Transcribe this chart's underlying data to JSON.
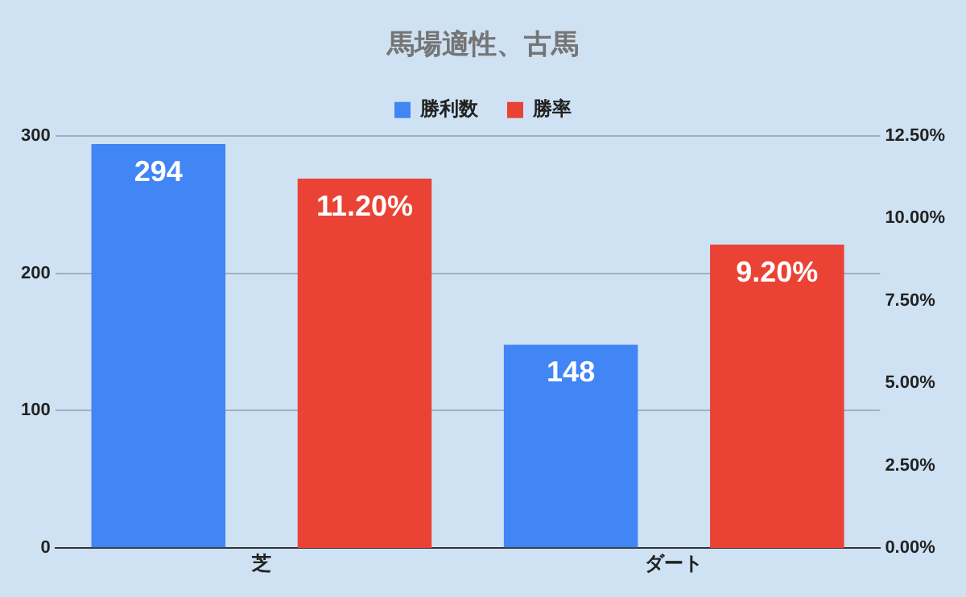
{
  "chart_data": {
    "type": "bar",
    "title": "馬場適性、古馬",
    "categories": [
      "芝",
      "ダート"
    ],
    "series": [
      {
        "name": "勝利数",
        "color": "#4285f4",
        "values": [
          294,
          148
        ],
        "value_labels": [
          "294",
          "148"
        ]
      },
      {
        "name": "勝率",
        "color": "#ea4335",
        "values": [
          11.2,
          9.2
        ],
        "axis": "y2",
        "value_labels": [
          "11.20%",
          "9.20%"
        ]
      }
    ],
    "ylim": [
      0,
      300
    ],
    "yticks": [
      0,
      100,
      200,
      300
    ],
    "y2lim": [
      0,
      12.5
    ],
    "y2ticks": [
      {
        "value": 0,
        "label": "0.00%"
      },
      {
        "value": 2.5,
        "label": "2.50%"
      },
      {
        "value": 5,
        "label": "5.00%"
      },
      {
        "value": 7.5,
        "label": "7.50%"
      },
      {
        "value": 10,
        "label": "10.00%"
      },
      {
        "value": 12.5,
        "label": "12.50%"
      }
    ],
    "grid": "y",
    "legend": "top"
  }
}
